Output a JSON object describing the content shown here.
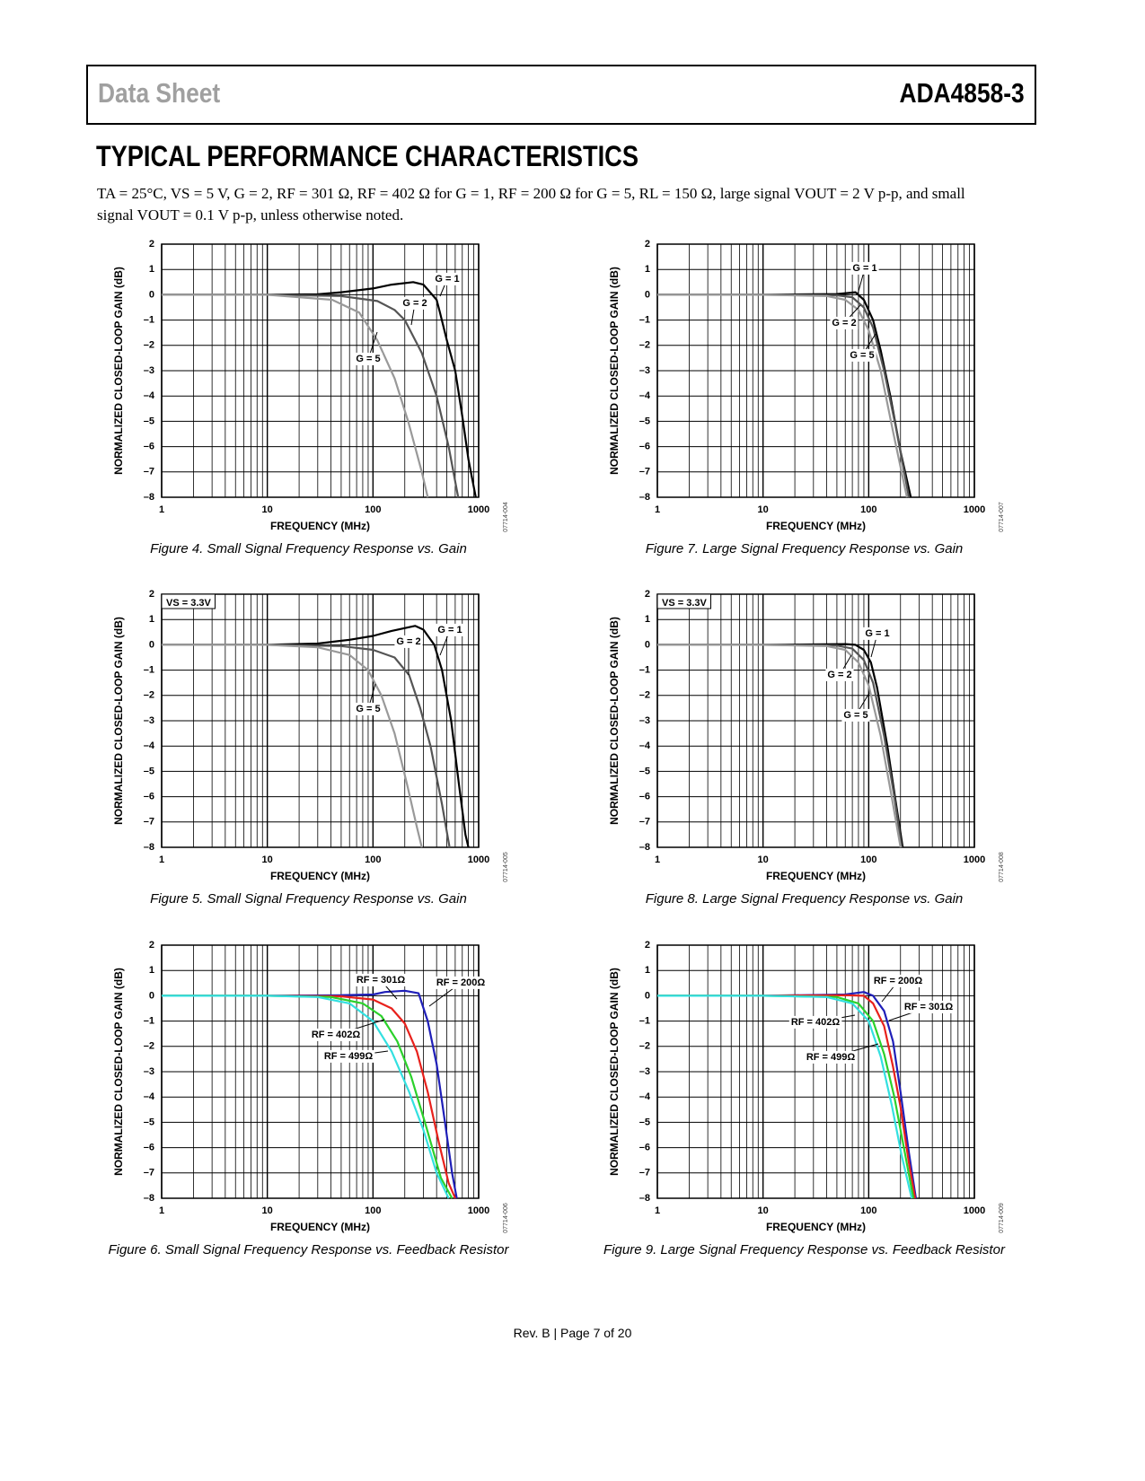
{
  "header": {
    "left": "Data Sheet",
    "right": "ADA4858-3"
  },
  "section_title": "TYPICAL PERFORMANCE CHARACTERISTICS",
  "conditions": "TA = 25°C, VS = 5 V, G = 2, RF = 301 Ω, RF = 402 Ω for G = 1, RF = 200 Ω for G = 5, RL = 150 Ω, large signal VOUT = 2 V p-p, and small signal VOUT = 0.1 V p-p, unless otherwise noted.",
  "footer": "Rev. B | Page 7 of 20",
  "chart_data": [
    {
      "type": "line",
      "caption": "Figure 4. Small Signal Frequency Response vs. Gain",
      "figure_code": "07714-004",
      "x_label": "FREQUENCY (MHz)",
      "y_label": "NORMALIZED CLOSED-LOOP GAIN (dB)",
      "xscale": "log",
      "grid": "major-minor",
      "xlim": [
        1,
        1000
      ],
      "xticks": [
        1,
        10,
        100,
        1000
      ],
      "ylim": [
        -8,
        2
      ],
      "yticks": [
        2,
        1,
        0,
        {
          "value": -1,
          "label": "–1"
        },
        {
          "value": -2,
          "label": "–2"
        },
        {
          "value": -3,
          "label": "–3"
        },
        {
          "value": -4,
          "label": "–4"
        },
        {
          "value": -5,
          "label": "–5"
        },
        {
          "value": -6,
          "label": "–6"
        },
        {
          "value": -7,
          "label": "–7"
        },
        {
          "value": -8,
          "label": "–8"
        }
      ],
      "series": [
        {
          "name": "G = 1",
          "color": "#000000",
          "x": [
            1,
            10,
            30,
            50,
            100,
            150,
            240,
            300,
            400,
            430,
            500,
            600,
            700,
            800,
            900,
            940
          ],
          "values": [
            0,
            0,
            0.02,
            0.1,
            0.25,
            0.4,
            0.5,
            0.4,
            -0.2,
            -0.7,
            -1.8,
            -3,
            -4.8,
            -6.5,
            -7.6,
            -8
          ]
        },
        {
          "name": "G = 2",
          "color": "#555555",
          "x": [
            1,
            10,
            50,
            110,
            160,
            200,
            290,
            400,
            520,
            640
          ],
          "values": [
            0,
            0,
            -0.05,
            -0.25,
            -0.6,
            -1,
            -2.3,
            -4,
            -6,
            -8
          ]
        },
        {
          "name": "G = 5",
          "color": "#999999",
          "x": [
            1,
            10,
            41,
            74,
            110,
            160,
            215,
            290,
            330
          ],
          "values": [
            0,
            0,
            -0.2,
            -0.7,
            -1.8,
            -3.3,
            -5,
            -7,
            -8
          ]
        }
      ]
    },
    {
      "type": "line",
      "caption": "Figure 5. Small Signal Frequency Response vs. Gain",
      "figure_code": "07714-005",
      "annotation": "VS = 3.3V",
      "x_label": "FREQUENCY (MHz)",
      "y_label": "NORMALIZED CLOSED-LOOP GAIN (dB)",
      "xscale": "log",
      "grid": "major-minor",
      "xlim": [
        1,
        1000
      ],
      "xticks": [
        1,
        10,
        100,
        1000
      ],
      "ylim": [
        -8,
        2
      ],
      "yticks": [
        2,
        1,
        0,
        {
          "value": -1,
          "label": "–1"
        },
        {
          "value": -2,
          "label": "–2"
        },
        {
          "value": -3,
          "label": "–3"
        },
        {
          "value": -4,
          "label": "–4"
        },
        {
          "value": -5,
          "label": "–5"
        },
        {
          "value": -6,
          "label": "–6"
        },
        {
          "value": -7,
          "label": "–7"
        },
        {
          "value": -8,
          "label": "–8"
        }
      ],
      "series": [
        {
          "name": "G = 1",
          "color": "#000000",
          "x": [
            1,
            10,
            30,
            60,
            100,
            150,
            250,
            300,
            380,
            450,
            550,
            650,
            750,
            800
          ],
          "values": [
            0,
            0,
            0.05,
            0.2,
            0.35,
            0.55,
            0.75,
            0.6,
            0,
            -1,
            -3,
            -5.5,
            -7.5,
            -8
          ]
        },
        {
          "name": "G = 2",
          "color": "#555555",
          "x": [
            1,
            10,
            50,
            100,
            160,
            220,
            280,
            350,
            450,
            530
          ],
          "values": [
            0,
            0,
            -0.05,
            -0.2,
            -0.5,
            -1.2,
            -2.5,
            -4,
            -6.3,
            -8
          ]
        },
        {
          "name": "G = 5",
          "color": "#999999",
          "x": [
            1,
            10,
            30,
            60,
            90,
            120,
            160,
            210,
            260,
            290
          ],
          "values": [
            0,
            0,
            -0.1,
            -0.4,
            -1,
            -2,
            -3.5,
            -5.5,
            -7.2,
            -8
          ]
        }
      ]
    },
    {
      "type": "line",
      "caption": "Figure 6. Small Signal Frequency Response vs. Feedback Resistor",
      "figure_code": "07714-006",
      "x_label": "FREQUENCY (MHz)",
      "y_label": "NORMALIZED CLOSED-LOOP GAIN (dB)",
      "xscale": "log",
      "grid": "major-minor",
      "xlim": [
        1,
        1000
      ],
      "xticks": [
        1,
        10,
        100,
        1000
      ],
      "ylim": [
        -8,
        2
      ],
      "yticks": [
        2,
        1,
        0,
        {
          "value": -1,
          "label": "–1"
        },
        {
          "value": -2,
          "label": "–2"
        },
        {
          "value": -3,
          "label": "–3"
        },
        {
          "value": -4,
          "label": "–4"
        },
        {
          "value": -5,
          "label": "–5"
        },
        {
          "value": -6,
          "label": "–6"
        },
        {
          "value": -7,
          "label": "–7"
        },
        {
          "value": -8,
          "label": "–8"
        }
      ],
      "series": [
        {
          "name": "RF = 200Ω",
          "color": "#1f1fb8",
          "x": [
            1,
            10,
            50,
            100,
            130,
            200,
            270,
            330,
            400,
            480,
            560,
            620
          ],
          "values": [
            0,
            0,
            0.02,
            0.05,
            0.15,
            0.2,
            0.1,
            -1,
            -2.7,
            -5,
            -7,
            -8
          ]
        },
        {
          "name": "RF = 301Ω",
          "color": "#e8211c",
          "x": [
            1,
            10,
            50,
            100,
            150,
            200,
            260,
            330,
            420,
            520,
            600
          ],
          "values": [
            0,
            0,
            -0.02,
            -0.15,
            -0.5,
            -1.1,
            -2.2,
            -3.8,
            -5.8,
            -7.4,
            -8
          ]
        },
        {
          "name": "RF = 402Ω",
          "color": "#2bd12b",
          "x": [
            1,
            10,
            40,
            80,
            120,
            170,
            230,
            320,
            440,
            560
          ],
          "values": [
            0,
            0,
            -0.05,
            -0.3,
            -0.8,
            -1.8,
            -3.2,
            -5.2,
            -7.2,
            -8
          ]
        },
        {
          "name": "RF = 499Ω",
          "color": "#33e0e0",
          "x": [
            1,
            10,
            30,
            60,
            100,
            150,
            220,
            300,
            400,
            520
          ],
          "values": [
            0,
            0,
            -0.05,
            -0.3,
            -1,
            -2.2,
            -3.8,
            -5.3,
            -7,
            -8
          ]
        }
      ]
    },
    {
      "type": "line",
      "caption": "Figure 7. Large Signal Frequency Response vs. Gain",
      "figure_code": "07714-007",
      "x_label": "FREQUENCY (MHz)",
      "y_label": "NORMALIZED CLOSED-LOOP GAIN (dB)",
      "xscale": "log",
      "grid": "major-minor",
      "xlim": [
        1,
        1000
      ],
      "xticks": [
        1,
        10,
        100,
        1000
      ],
      "ylim": [
        -8,
        2
      ],
      "yticks": [
        2,
        1,
        0,
        {
          "value": -1,
          "label": "–1"
        },
        {
          "value": -2,
          "label": "–2"
        },
        {
          "value": -3,
          "label": "–3"
        },
        {
          "value": -4,
          "label": "–4"
        },
        {
          "value": -5,
          "label": "–5"
        },
        {
          "value": -6,
          "label": "–6"
        },
        {
          "value": -7,
          "label": "–7"
        },
        {
          "value": -8,
          "label": "–8"
        }
      ],
      "series": [
        {
          "name": "G = 1",
          "color": "#000000",
          "x": [
            1,
            10,
            50,
            75,
            90,
            110,
            130,
            160,
            200,
            250
          ],
          "values": [
            0,
            0,
            0.03,
            0.1,
            -0.2,
            -1,
            -2.2,
            -4,
            -6.2,
            -8
          ]
        },
        {
          "name": "G = 2",
          "color": "#555555",
          "x": [
            1,
            10,
            50,
            70,
            90,
            110,
            140,
            180,
            240
          ],
          "values": [
            0,
            0,
            -0.02,
            -0.1,
            -0.5,
            -1.3,
            -3,
            -5.2,
            -8
          ]
        },
        {
          "name": "G = 5",
          "color": "#999999",
          "x": [
            1,
            10,
            40,
            60,
            80,
            100,
            130,
            170,
            230
          ],
          "values": [
            0,
            0,
            -0.05,
            -0.2,
            -0.6,
            -1.4,
            -3,
            -5.4,
            -8
          ]
        }
      ]
    },
    {
      "type": "line",
      "caption": "Figure 8. Large Signal Frequency Response vs. Gain",
      "figure_code": "07714-008",
      "annotation": "VS = 3.3V",
      "x_label": "FREQUENCY (MHz)",
      "y_label": "NORMALIZED CLOSED-LOOP GAIN (dB)",
      "xscale": "log",
      "grid": "major-minor",
      "xlim": [
        1,
        1000
      ],
      "xticks": [
        1,
        10,
        100,
        1000
      ],
      "ylim": [
        -8,
        2
      ],
      "yticks": [
        2,
        1,
        0,
        {
          "value": -1,
          "label": "–1"
        },
        {
          "value": -2,
          "label": "–2"
        },
        {
          "value": -3,
          "label": "–3"
        },
        {
          "value": -4,
          "label": "–4"
        },
        {
          "value": -5,
          "label": "–5"
        },
        {
          "value": -6,
          "label": "–6"
        },
        {
          "value": -7,
          "label": "–7"
        },
        {
          "value": -8,
          "label": "–8"
        }
      ],
      "series": [
        {
          "name": "G = 1",
          "color": "#000000",
          "x": [
            1,
            10,
            60,
            75,
            90,
            105,
            120,
            150,
            180,
            210
          ],
          "values": [
            0,
            0,
            0.03,
            0,
            -0.2,
            -0.7,
            -1.7,
            -4,
            -6.2,
            -8
          ]
        },
        {
          "name": "G = 2",
          "color": "#555555",
          "x": [
            1,
            10,
            50,
            70,
            90,
            110,
            140,
            175,
            205
          ],
          "values": [
            0,
            0,
            -0.03,
            -0.15,
            -0.6,
            -1.5,
            -3.6,
            -6,
            -8
          ]
        },
        {
          "name": "G = 5",
          "color": "#999999",
          "x": [
            1,
            10,
            40,
            60,
            80,
            100,
            130,
            165,
            200
          ],
          "values": [
            0,
            0,
            -0.05,
            -0.2,
            -0.7,
            -1.6,
            -3.6,
            -6,
            -8
          ]
        }
      ]
    },
    {
      "type": "line",
      "caption": "Figure 9. Large Signal Frequency Response vs. Feedback Resistor",
      "figure_code": "07714-009",
      "x_label": "FREQUENCY (MHz)",
      "y_label": "NORMALIZED CLOSED-LOOP GAIN (dB)",
      "xscale": "log",
      "grid": "major-minor",
      "xlim": [
        1,
        1000
      ],
      "xticks": [
        1,
        10,
        100,
        1000
      ],
      "ylim": [
        -8,
        2
      ],
      "yticks": [
        2,
        1,
        0,
        {
          "value": -1,
          "label": "–1"
        },
        {
          "value": -2,
          "label": "–2"
        },
        {
          "value": -3,
          "label": "–3"
        },
        {
          "value": -4,
          "label": "–4"
        },
        {
          "value": -5,
          "label": "–5"
        },
        {
          "value": -6,
          "label": "–6"
        },
        {
          "value": -7,
          "label": "–7"
        },
        {
          "value": -8,
          "label": "–8"
        }
      ],
      "series": [
        {
          "name": "RF = 200Ω",
          "color": "#1f1fb8",
          "x": [
            1,
            10,
            60,
            90,
            110,
            140,
            170,
            200,
            240,
            280
          ],
          "values": [
            0,
            0,
            0.05,
            0.15,
            0,
            -0.6,
            -1.8,
            -3.8,
            -6.2,
            -8
          ]
        },
        {
          "name": "RF = 301Ω",
          "color": "#e8211c",
          "x": [
            1,
            10,
            60,
            90,
            110,
            140,
            170,
            200,
            240,
            275
          ],
          "values": [
            0,
            0,
            0.02,
            0,
            -0.3,
            -1.2,
            -2.8,
            -4.4,
            -6.6,
            -8
          ]
        },
        {
          "name": "RF = 402Ω",
          "color": "#2bd12b",
          "x": [
            1,
            10,
            50,
            80,
            110,
            140,
            175,
            215,
            265
          ],
          "values": [
            0,
            0,
            -0.05,
            -0.3,
            -1,
            -2.3,
            -4,
            -6,
            -8
          ]
        },
        {
          "name": "RF = 499Ω",
          "color": "#33e0e0",
          "x": [
            1,
            10,
            40,
            70,
            100,
            130,
            165,
            205,
            255
          ],
          "values": [
            0,
            0,
            -0.05,
            -0.3,
            -1,
            -2.4,
            -4.3,
            -6.3,
            -8
          ]
        }
      ]
    }
  ]
}
